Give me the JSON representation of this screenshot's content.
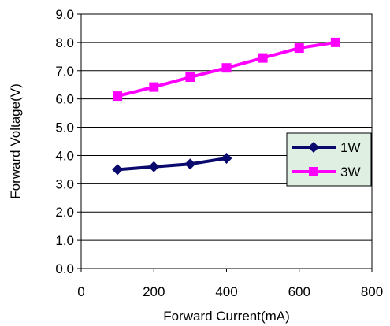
{
  "chart_data": {
    "type": "line",
    "title": "",
    "xlabel": "Forward Current(mA)",
    "ylabel": "Forward Voltage(V)",
    "xlim": [
      0,
      800
    ],
    "ylim": [
      0.0,
      9.0
    ],
    "xticks": [
      "0",
      "200",
      "400",
      "600",
      "800"
    ],
    "yticks": [
      "0.0",
      "1.0",
      "2.0",
      "3.0",
      "4.0",
      "5.0",
      "6.0",
      "7.0",
      "8.0",
      "9.0"
    ],
    "grid": "horizontal",
    "legend": {
      "placement": "right",
      "background": "#dff0e3"
    },
    "series": [
      {
        "name": "1W",
        "color": "#0a0a6e",
        "marker": "diamond",
        "x": [
          100,
          200,
          300,
          400
        ],
        "y": [
          3.5,
          3.6,
          3.7,
          3.9
        ]
      },
      {
        "name": "3W",
        "color": "#ff00ff",
        "marker": "square",
        "x": [
          100,
          200,
          300,
          400,
          500,
          600,
          700
        ],
        "y": [
          6.1,
          6.42,
          6.77,
          7.1,
          7.45,
          7.8,
          8.0
        ]
      }
    ]
  }
}
